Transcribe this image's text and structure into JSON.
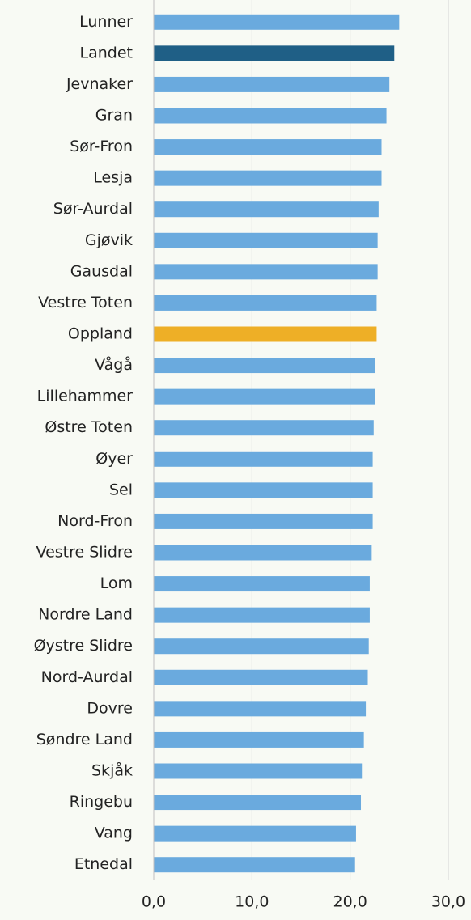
{
  "chart_data": {
    "type": "barh",
    "categories": [
      "Lunner",
      "Landet",
      "Jevnaker",
      "Gran",
      "Sør-Fron",
      "Lesja",
      "Sør-Aurdal",
      "Gjøvik",
      "Gausdal",
      "Vestre Toten",
      "Oppland",
      "Vågå",
      "Lillehammer",
      "Østre Toten",
      "Øyer",
      "Sel",
      "Nord-Fron",
      "Vestre Slidre",
      "Lom",
      "Nordre Land",
      "Øystre Slidre",
      "Nord-Aurdal",
      "Dovre",
      "Søndre Land",
      "Skjåk",
      "Ringebu",
      "Vang",
      "Etnedal"
    ],
    "values": [
      25.0,
      24.5,
      24.0,
      23.7,
      23.2,
      23.2,
      22.9,
      22.8,
      22.8,
      22.7,
      22.7,
      22.5,
      22.5,
      22.4,
      22.3,
      22.3,
      22.3,
      22.2,
      22.0,
      22.0,
      21.9,
      21.8,
      21.6,
      21.4,
      21.2,
      21.1,
      20.6,
      20.5
    ],
    "colors": [
      "#6aaade",
      "#1f5f86",
      "#6aaade",
      "#6aaade",
      "#6aaade",
      "#6aaade",
      "#6aaade",
      "#6aaade",
      "#6aaade",
      "#6aaade",
      "#eeaf26",
      "#6aaade",
      "#6aaade",
      "#6aaade",
      "#6aaade",
      "#6aaade",
      "#6aaade",
      "#6aaade",
      "#6aaade",
      "#6aaade",
      "#6aaade",
      "#6aaade",
      "#6aaade",
      "#6aaade",
      "#6aaade",
      "#6aaade",
      "#6aaade",
      "#6aaade"
    ],
    "xlim": [
      0,
      30
    ],
    "xticks": [
      {
        "value": 0,
        "label": "0,0"
      },
      {
        "value": 10,
        "label": "10,0"
      },
      {
        "value": 20,
        "label": "20,0"
      },
      {
        "value": 30,
        "label": "30,0"
      }
    ],
    "grid": true
  }
}
